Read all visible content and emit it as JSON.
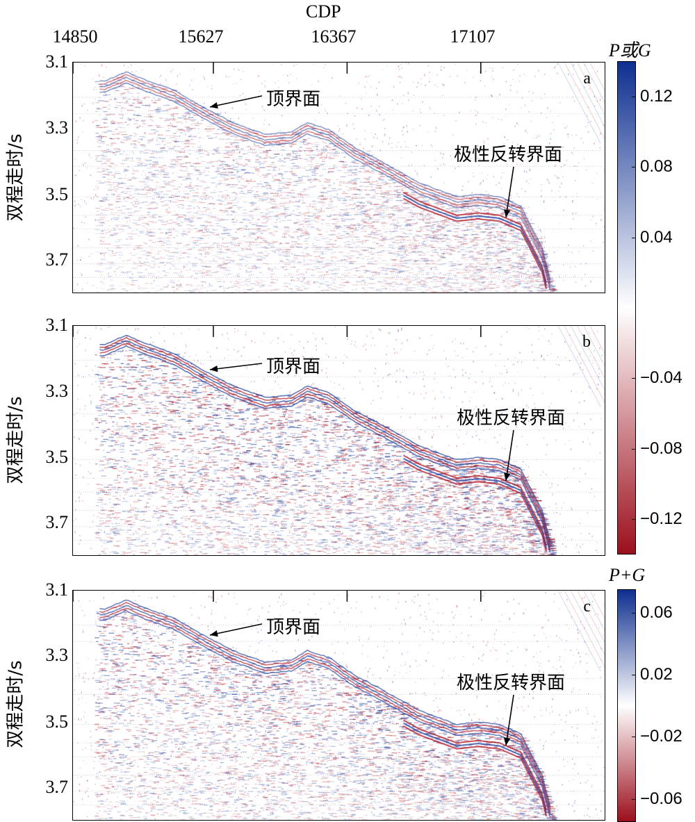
{
  "chart_data": [
    {
      "type": "heatmap",
      "panel_letter": "a",
      "xlabel": "CDP",
      "ylabel": "双程走时/s",
      "x_ticks": [
        "14850",
        "15627",
        "16367",
        "17107"
      ],
      "y_ticks": [
        "3.1",
        "3.3",
        "3.5",
        "3.7"
      ],
      "xlim": [
        14850,
        17800
      ],
      "ylim": [
        3.1,
        3.8
      ],
      "annotations": [
        "顶界面",
        "极性反转界面"
      ],
      "colorbar": {
        "title": "P或G",
        "ticks": [
          "0.12",
          "0.08",
          "0.04",
          "−0.04",
          "−0.08",
          "−0.12"
        ],
        "range": [
          -0.14,
          0.14
        ],
        "colors": [
          "#9b0f1c",
          "#ffffff",
          "#0e2f8f"
        ]
      }
    },
    {
      "type": "heatmap",
      "panel_letter": "b",
      "ylabel": "双程走时/s",
      "y_ticks": [
        "3.1",
        "3.3",
        "3.5",
        "3.7"
      ],
      "xlim": [
        14850,
        17800
      ],
      "ylim": [
        3.1,
        3.8
      ],
      "annotations": [
        "顶界面",
        "极性反转界面"
      ]
    },
    {
      "type": "heatmap",
      "panel_letter": "c",
      "ylabel": "双程走时/s",
      "y_ticks": [
        "3.1",
        "3.3",
        "3.5",
        "3.7"
      ],
      "xlim": [
        14850,
        17800
      ],
      "ylim": [
        3.1,
        3.8
      ],
      "annotations": [
        "顶界面",
        "极性反转界面"
      ],
      "colorbar": {
        "title": "P+G",
        "ticks": [
          "0.06",
          "0.02",
          "−0.02",
          "−0.06"
        ],
        "range": [
          -0.075,
          0.075
        ],
        "colors": [
          "#9b0f1c",
          "#ffffff",
          "#0e2f8f"
        ]
      }
    }
  ]
}
